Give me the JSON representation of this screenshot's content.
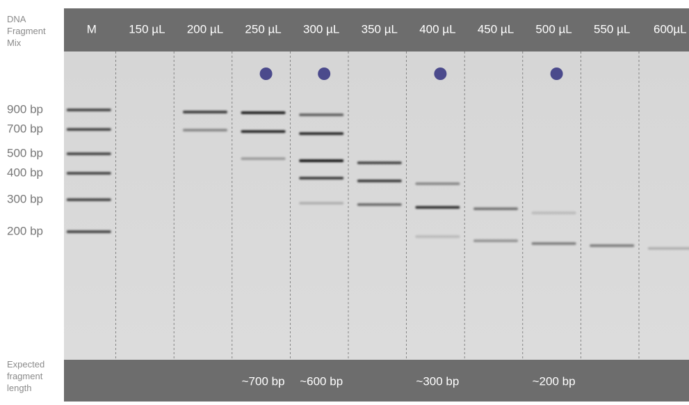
{
  "header": {
    "title": "DNA Fragment Mix"
  },
  "lanes": [
    {
      "label": "M"
    },
    {
      "label": "150 µL"
    },
    {
      "label": "200 µL"
    },
    {
      "label": "250 µL",
      "expected": "~700 bp"
    },
    {
      "label": "300 µL",
      "expected": "~600 bp"
    },
    {
      "label": "350 µL"
    },
    {
      "label": "400 µL",
      "expected": "~300 bp"
    },
    {
      "label": "450 µL"
    },
    {
      "label": "500 µL",
      "expected": "~200 bp"
    },
    {
      "label": "550 µL"
    },
    {
      "label": "600µL"
    }
  ],
  "markers": [
    "900 bp",
    "700 bp",
    "500 bp",
    "400 bp",
    "300 bp",
    "200 bp"
  ],
  "footer": {
    "title": "Expected fragment length"
  }
}
